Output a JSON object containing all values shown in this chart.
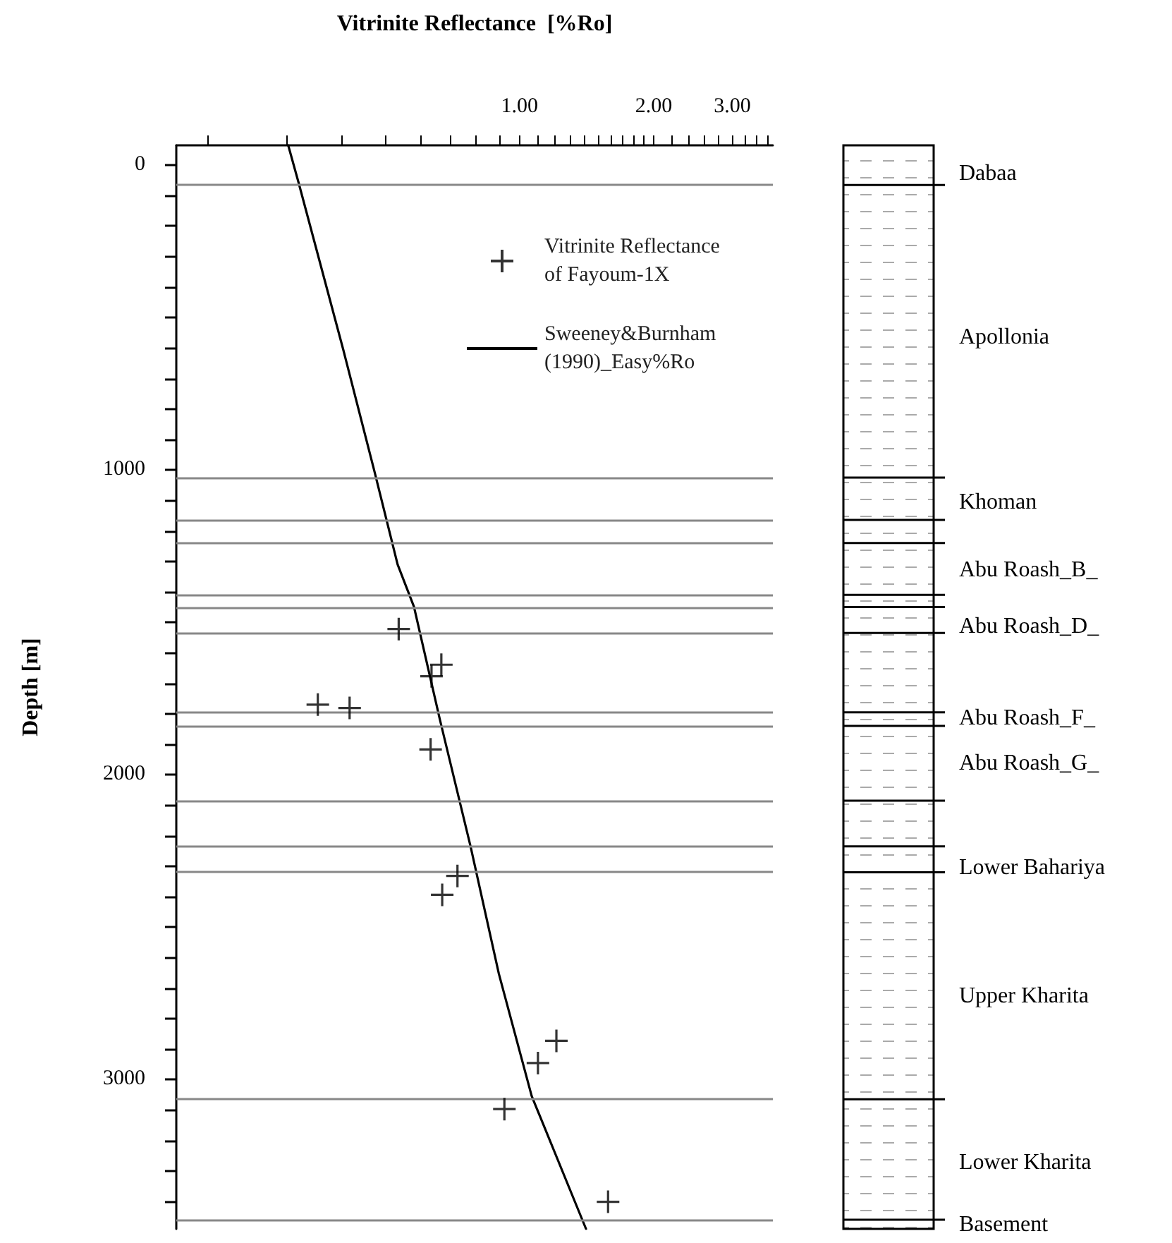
{
  "chart_data": {
    "type": "scatter",
    "xlabel": "Vitrinite Reflectance  [%Ro]",
    "ylabel": "Depth [m]",
    "log": "x",
    "legend": "top right",
    "xlim": [
      0.17,
      3.7
    ],
    "ylim": [
      3490,
      -65
    ],
    "xticks": [
      {
        "value": 0.2,
        "label": null
      },
      {
        "value": 0.3,
        "label": null
      },
      {
        "value": 0.4,
        "label": null
      },
      {
        "value": 0.5,
        "label": null
      },
      {
        "value": 0.6,
        "label": null
      },
      {
        "value": 0.7,
        "label": null
      },
      {
        "value": 0.8,
        "label": null
      },
      {
        "value": 0.9,
        "label": null
      },
      {
        "value": 1,
        "label": "1.00"
      },
      {
        "value": 1.1,
        "label": null
      },
      {
        "value": 1.2,
        "label": null
      },
      {
        "value": 1.3,
        "label": null
      },
      {
        "value": 1.4,
        "label": null
      },
      {
        "value": 1.5,
        "label": null
      },
      {
        "value": 1.6,
        "label": null
      },
      {
        "value": 1.7,
        "label": null
      },
      {
        "value": 1.8,
        "label": null
      },
      {
        "value": 1.9,
        "label": null
      },
      {
        "value": 2,
        "label": "2.00"
      },
      {
        "value": 2.2,
        "label": null
      },
      {
        "value": 2.4,
        "label": null
      },
      {
        "value": 2.6,
        "label": null
      },
      {
        "value": 2.8,
        "label": null
      },
      {
        "value": 3,
        "label": "3.00"
      },
      {
        "value": 3.2,
        "label": null
      },
      {
        "value": 3.4,
        "label": null
      },
      {
        "value": 3.6,
        "label": null
      }
    ],
    "yticks": [
      0,
      {
        "value": 100,
        "label": null
      },
      {
        "value": 200,
        "label": null
      },
      {
        "value": 300,
        "label": null
      },
      {
        "value": 400,
        "label": null
      },
      {
        "value": 500,
        "label": null
      },
      {
        "value": 600,
        "label": null
      },
      {
        "value": 700,
        "label": null
      },
      {
        "value": 800,
        "label": null
      },
      {
        "value": 900,
        "label": null
      },
      1000,
      {
        "value": 1100,
        "label": null
      },
      {
        "value": 1200,
        "label": null
      },
      {
        "value": 1300,
        "label": null
      },
      {
        "value": 1400,
        "label": null
      },
      {
        "value": 1500,
        "label": null
      },
      {
        "value": 1600,
        "label": null
      },
      {
        "value": 1700,
        "label": null
      },
      {
        "value": 1800,
        "label": null
      },
      {
        "value": 1900,
        "label": null
      },
      2000,
      {
        "value": 2100,
        "label": null
      },
      {
        "value": 2200,
        "label": null
      },
      {
        "value": 2300,
        "label": null
      },
      {
        "value": 2400,
        "label": null
      },
      {
        "value": 2500,
        "label": null
      },
      {
        "value": 2600,
        "label": null
      },
      {
        "value": 2700,
        "label": null
      },
      {
        "value": 2800,
        "label": null
      },
      {
        "value": 2900,
        "label": null
      },
      3000,
      {
        "value": 3100,
        "label": null
      },
      {
        "value": 3200,
        "label": null
      },
      {
        "value": 3300,
        "label": null
      },
      {
        "value": 3400,
        "label": null
      }
    ],
    "series": [
      {
        "name": "Vitrinite Reflectance of Fayoum-1X",
        "type": "scatter",
        "marker": "cross",
        "color": "#000000",
        "x": [
          0.536,
          0.668,
          0.635,
          0.353,
          0.416,
          0.632,
          0.726,
          0.671,
          1.21,
          1.1,
          0.925,
          1.58
        ],
        "values": [
          1522,
          1639,
          1677,
          1770,
          1781,
          1917,
          2332,
          2394,
          2873,
          2946,
          3097,
          3401
        ]
      },
      {
        "name": "Sweeney&Burnham (1990)_Easy%Ro",
        "type": "line",
        "marker": "none",
        "line_style": "solid",
        "color": "#000000",
        "x": [
          0.303,
          0.32,
          0.403,
          0.472,
          0.533,
          0.58,
          0.663,
          0.777,
          0.899,
          1.065,
          1.41
        ],
        "values": [
          -65,
          60,
          608,
          1000,
          1310,
          1449,
          1819,
          2236,
          2653,
          3054,
          3490
        ]
      }
    ],
    "ref_lines": [
      {
        "axis": "y",
        "value": 65,
        "color": "#888888"
      },
      {
        "axis": "y",
        "value": 1025,
        "color": "#888888"
      },
      {
        "axis": "y",
        "value": 1164,
        "color": "#888888"
      },
      {
        "axis": "y",
        "value": 1240,
        "color": "#888888"
      },
      {
        "axis": "y",
        "value": 1410,
        "color": "#888888"
      },
      {
        "axis": "y",
        "value": 1450,
        "color": "#888888"
      },
      {
        "axis": "y",
        "value": 1535,
        "color": "#888888"
      },
      {
        "axis": "y",
        "value": 1795,
        "color": "#888888"
      },
      {
        "axis": "y",
        "value": 1840,
        "color": "#888888"
      },
      {
        "axis": "y",
        "value": 2085,
        "color": "#888888"
      },
      {
        "axis": "y",
        "value": 2235,
        "color": "#888888"
      },
      {
        "axis": "y",
        "value": 2320,
        "color": "#888888"
      },
      {
        "axis": "y",
        "value": 3065,
        "color": "#888888"
      },
      {
        "axis": "y",
        "value": 3460,
        "color": "#888888"
      }
    ],
    "annotations": [
      "Dabaa",
      "Apollonia",
      "Khoman",
      "Abu Roash_B_",
      "Abu Roash_D_",
      "Abu Roash_F_",
      "Abu Roash_G_",
      "Lower Bahariya",
      "Upper Kharita",
      "Lower Kharita",
      "Basement"
    ]
  }
}
